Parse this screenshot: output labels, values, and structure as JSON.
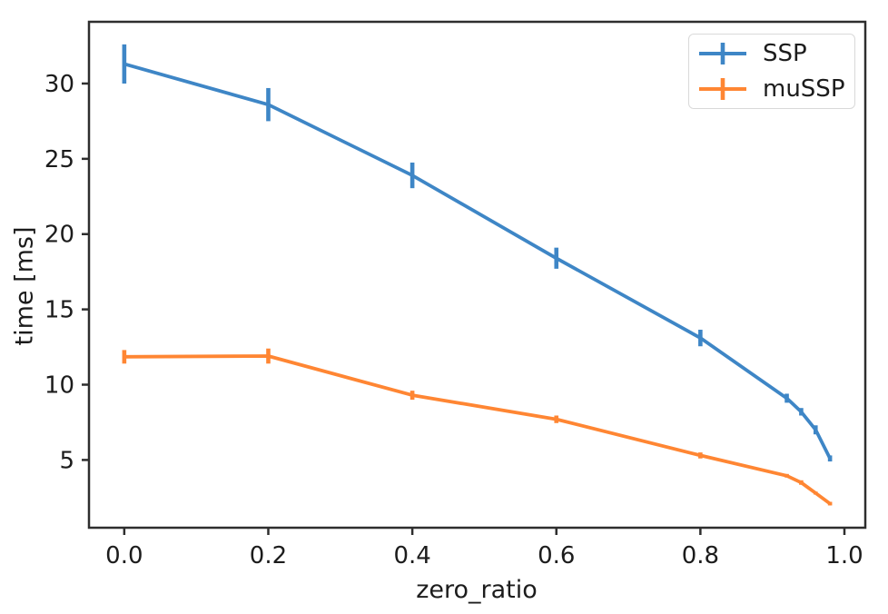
{
  "chart_data": {
    "type": "line",
    "xlabel": "zero_ratio",
    "ylabel": "time [ms]",
    "xlim": [
      -0.049,
      1.029
    ],
    "ylim": [
      0.5,
      34.1
    ],
    "xticks": [
      0.0,
      0.2,
      0.4,
      0.6,
      0.8,
      1.0
    ],
    "xtick_labels": [
      "0.0",
      "0.2",
      "0.4",
      "0.6",
      "0.8",
      "1.0"
    ],
    "yticks": [
      5,
      10,
      15,
      20,
      25,
      30
    ],
    "ytick_labels": [
      "5",
      "10",
      "15",
      "20",
      "25",
      "30"
    ],
    "grid": false,
    "legend_position": "top-right",
    "x": [
      0.0,
      0.2,
      0.4,
      0.6,
      0.8,
      0.92,
      0.94,
      0.96,
      0.98
    ],
    "series": [
      {
        "name": "SSP",
        "color": "#3e86c6",
        "values": [
          31.3,
          28.6,
          23.9,
          18.4,
          13.1,
          9.1,
          8.2,
          7.0,
          5.1
        ],
        "yerr": [
          1.3,
          1.1,
          0.85,
          0.7,
          0.55,
          0.3,
          0.25,
          0.3,
          0.2
        ]
      },
      {
        "name": "muSSP",
        "color": "#ff8633",
        "values": [
          11.85,
          11.9,
          9.3,
          7.7,
          5.3,
          3.95,
          3.5,
          2.8,
          2.1
        ],
        "yerr": [
          0.45,
          0.5,
          0.3,
          0.25,
          0.2,
          0.12,
          0.15,
          0.1,
          0.12
        ]
      }
    ],
    "style": {
      "spine_color": "#2e2e2e",
      "tick_label_color": "#1c1c1c",
      "line_width": 3.8,
      "errorbar_width": 4.6,
      "tick_font_size": 26
    }
  }
}
